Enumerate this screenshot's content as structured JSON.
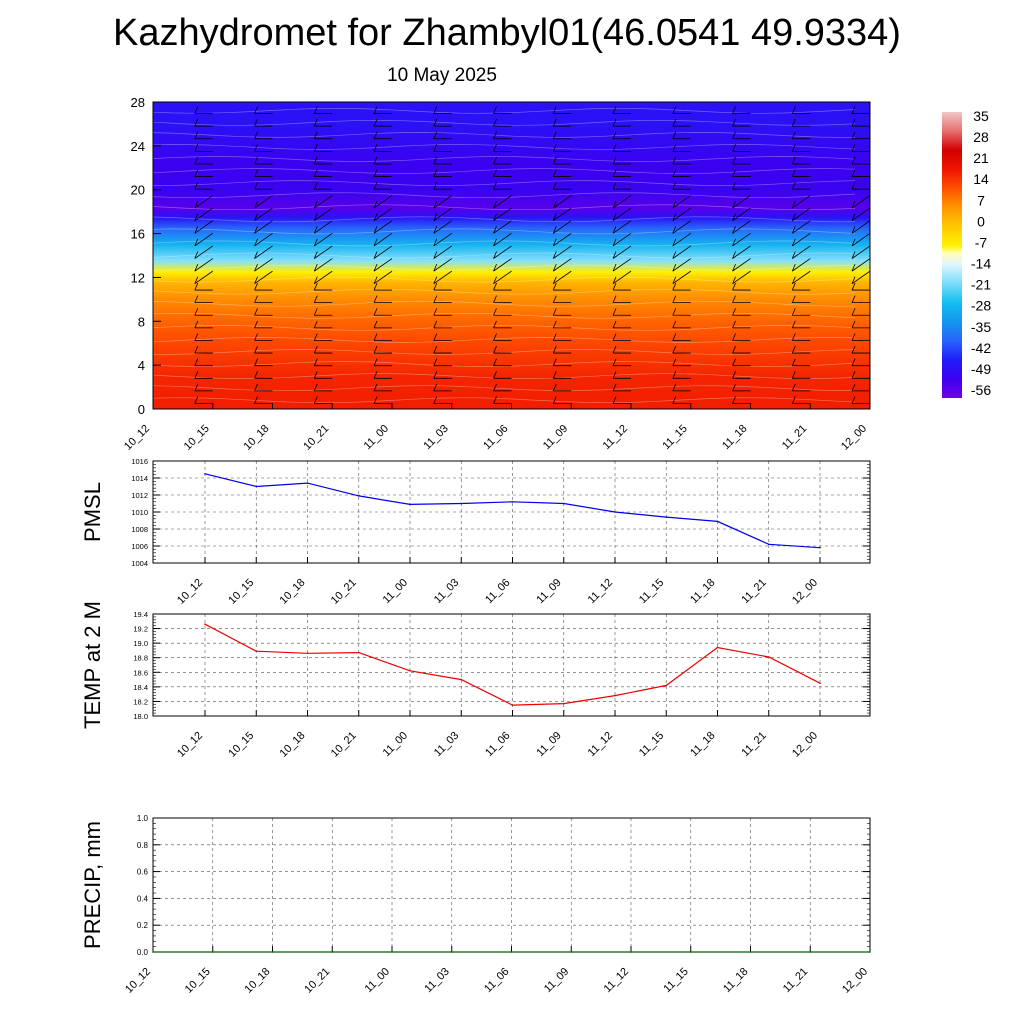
{
  "title": "Kazhydromet for Zhambyl01(46.0541 49.9334)",
  "subtitle": "10 May 2025",
  "chart_data": [
    {
      "type": "heatmap",
      "description_of_fill": "temperature vs height with wind barbs",
      "x_ticks": [
        "10_12",
        "10_15",
        "10_18",
        "10_21",
        "11_00",
        "11_03",
        "11_06",
        "11_09",
        "11_12",
        "11_15",
        "11_18",
        "11_21",
        "12_00"
      ],
      "y_ticks": [
        0,
        4,
        8,
        12,
        16,
        20,
        24,
        28
      ],
      "ylim": [
        0,
        28
      ],
      "temperature_profile": [
        {
          "y": 0,
          "t": 20
        },
        {
          "y": 3,
          "t": 19
        },
        {
          "y": 6,
          "t": 15
        },
        {
          "y": 8,
          "t": 12
        },
        {
          "y": 10,
          "t": 8
        },
        {
          "y": 11.5,
          "t": 3
        },
        {
          "y": 12.5,
          "t": -7
        },
        {
          "y": 13.5,
          "t": -20
        },
        {
          "y": 15,
          "t": -30
        },
        {
          "y": 16.5,
          "t": -42
        },
        {
          "y": 17.5,
          "t": -52
        },
        {
          "y": 18.3,
          "t": -60
        },
        {
          "y": 20,
          "t": -55
        },
        {
          "y": 22,
          "t": -56
        },
        {
          "y": 24,
          "t": -54
        },
        {
          "y": 26,
          "t": -52
        },
        {
          "y": 28,
          "t": -52
        }
      ],
      "colorbar": {
        "labels": [
          "35",
          "28",
          "21",
          "14",
          "7",
          "0",
          "-7",
          "-14",
          "-21",
          "-28",
          "-35",
          "-42",
          "-49",
          "-56"
        ],
        "range": [
          -63,
          42
        ]
      }
    },
    {
      "type": "line",
      "ylabel": "PMSL",
      "color": "#0000ee",
      "ylim": [
        1004,
        1016
      ],
      "y_ticks": [
        "1004",
        "1006",
        "1008",
        "1010",
        "1012",
        "1014",
        "1016"
      ],
      "x": [
        "10_12",
        "10_15",
        "10_18",
        "10_21",
        "11_00",
        "11_03",
        "11_06",
        "11_09",
        "11_12",
        "11_15",
        "11_18",
        "11_21",
        "12_00"
      ],
      "values": [
        1014.5,
        1013.0,
        1013.4,
        1011.9,
        1010.9,
        1011.0,
        1011.2,
        1011.0,
        1010.0,
        1009.4,
        1008.9,
        1006.2,
        1005.8
      ]
    },
    {
      "type": "line",
      "ylabel": "TEMP at 2 M",
      "color": "#ee0000",
      "ylim": [
        18.0,
        19.4
      ],
      "y_ticks": [
        "18.0",
        "18.2",
        "18.4",
        "18.6",
        "18.8",
        "19.0",
        "19.2",
        "19.4"
      ],
      "x": [
        "10_12",
        "10_15",
        "10_18",
        "10_21",
        "11_00",
        "11_03",
        "11_06",
        "11_09",
        "11_12",
        "11_15",
        "11_18",
        "11_21",
        "12_00"
      ],
      "values": [
        19.26,
        18.89,
        18.86,
        18.87,
        18.62,
        18.5,
        18.15,
        18.17,
        18.28,
        18.42,
        18.94,
        18.81,
        18.45
      ]
    },
    {
      "type": "line",
      "ylabel": "PRECIP, mm",
      "color": "#006400",
      "ylim": [
        0.0,
        1.0
      ],
      "y_ticks": [
        "0.0",
        "0.2",
        "0.4",
        "0.6",
        "0.8",
        "1.0"
      ],
      "x": [
        "10_12",
        "10_15",
        "10_18",
        "10_21",
        "11_00",
        "11_03",
        "11_06",
        "11_09",
        "11_12",
        "11_15",
        "11_18",
        "11_21",
        "12_00"
      ],
      "values": [
        0,
        0,
        0,
        0,
        0,
        0,
        0,
        0,
        0,
        0,
        0,
        0,
        0
      ]
    }
  ]
}
